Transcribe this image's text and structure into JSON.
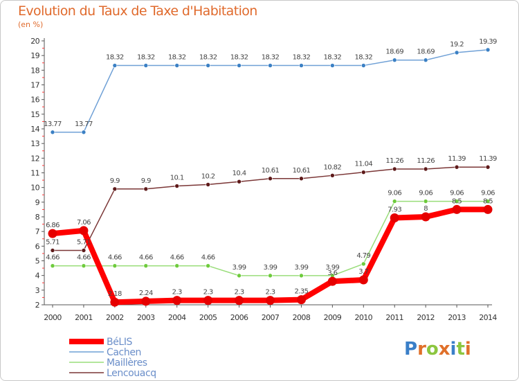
{
  "title": "Evolution du Taux de Taxe d'Habitation",
  "subtitle": "(en %)",
  "logo": "Proxiti",
  "chart_data": {
    "type": "line",
    "title": "Evolution du Taux de Taxe d'Habitation",
    "ylabel": "(en %)",
    "xlabel": "",
    "x": [
      "2000",
      "2001",
      "2002",
      "2003",
      "2004",
      "2005",
      "2006",
      "2007",
      "2008",
      "2009",
      "2010",
      "2011",
      "2012",
      "2013",
      "2014"
    ],
    "ylim": [
      2,
      20
    ],
    "yticks": [
      2,
      3,
      4,
      5,
      6,
      7,
      8,
      9,
      10,
      11,
      12,
      13,
      14,
      15,
      16,
      17,
      18,
      19,
      20
    ],
    "grid": false,
    "legend_position": "bottom-left",
    "series": [
      {
        "name": "BéLIS",
        "color": "#ff0000",
        "width": 8,
        "values": [
          6.86,
          7.06,
          2.18,
          2.24,
          2.3,
          2.3,
          2.3,
          2.3,
          2.35,
          3.6,
          3.7,
          7.93,
          8,
          8.5,
          8.5
        ],
        "labels": [
          "6.86",
          "7.06",
          "2.18",
          "2.24",
          "2.3",
          "2.3",
          "2.3",
          "2.3",
          "2.35",
          "3.6",
          "3.7",
          "7.93",
          "8",
          "8.5",
          "8.5"
        ]
      },
      {
        "name": "Cachen",
        "color": "#6fa0d6",
        "width": 1.5,
        "marker": "#3b80c4",
        "values": [
          13.77,
          13.77,
          18.32,
          18.32,
          18.32,
          18.32,
          18.32,
          18.32,
          18.32,
          18.32,
          18.32,
          18.69,
          18.69,
          19.2,
          19.39
        ],
        "labels": [
          "13.77",
          "13.77",
          "18.32",
          "18.32",
          "18.32",
          "18.32",
          "18.32",
          "18.32",
          "18.32",
          "18.32",
          "18.32",
          "18.69",
          "18.69",
          "19.2",
          "19.39"
        ]
      },
      {
        "name": "Maillères",
        "color": "#99dd7a",
        "width": 1.5,
        "marker": "#6ecb3c",
        "values": [
          4.66,
          4.66,
          4.66,
          4.66,
          4.66,
          4.66,
          3.99,
          3.99,
          3.99,
          3.99,
          4.79,
          9.06,
          9.06,
          9.06,
          9.06
        ],
        "labels": [
          "4.66",
          "4.66",
          "4.66",
          "4.66",
          "4.66",
          "4.66",
          "3.99",
          "3.99",
          "3.99",
          "3.99",
          "4.79",
          "9.06",
          "9.06",
          "9.06",
          "9.06"
        ]
      },
      {
        "name": "Lencouacq",
        "color": "#7a3535",
        "width": 1.5,
        "marker": "#5e1a1a",
        "values": [
          5.71,
          5.71,
          9.9,
          9.9,
          10.1,
          10.2,
          10.4,
          10.61,
          10.61,
          10.82,
          11.04,
          11.26,
          11.26,
          11.39,
          11.39
        ],
        "labels": [
          "5.71",
          "5.71",
          "9.9",
          "9.9",
          "10.1",
          "10.2",
          "10.4",
          "10.61",
          "10.61",
          "10.82",
          "11.04",
          "11.26",
          "11.26",
          "11.39",
          "11.39"
        ]
      }
    ]
  }
}
